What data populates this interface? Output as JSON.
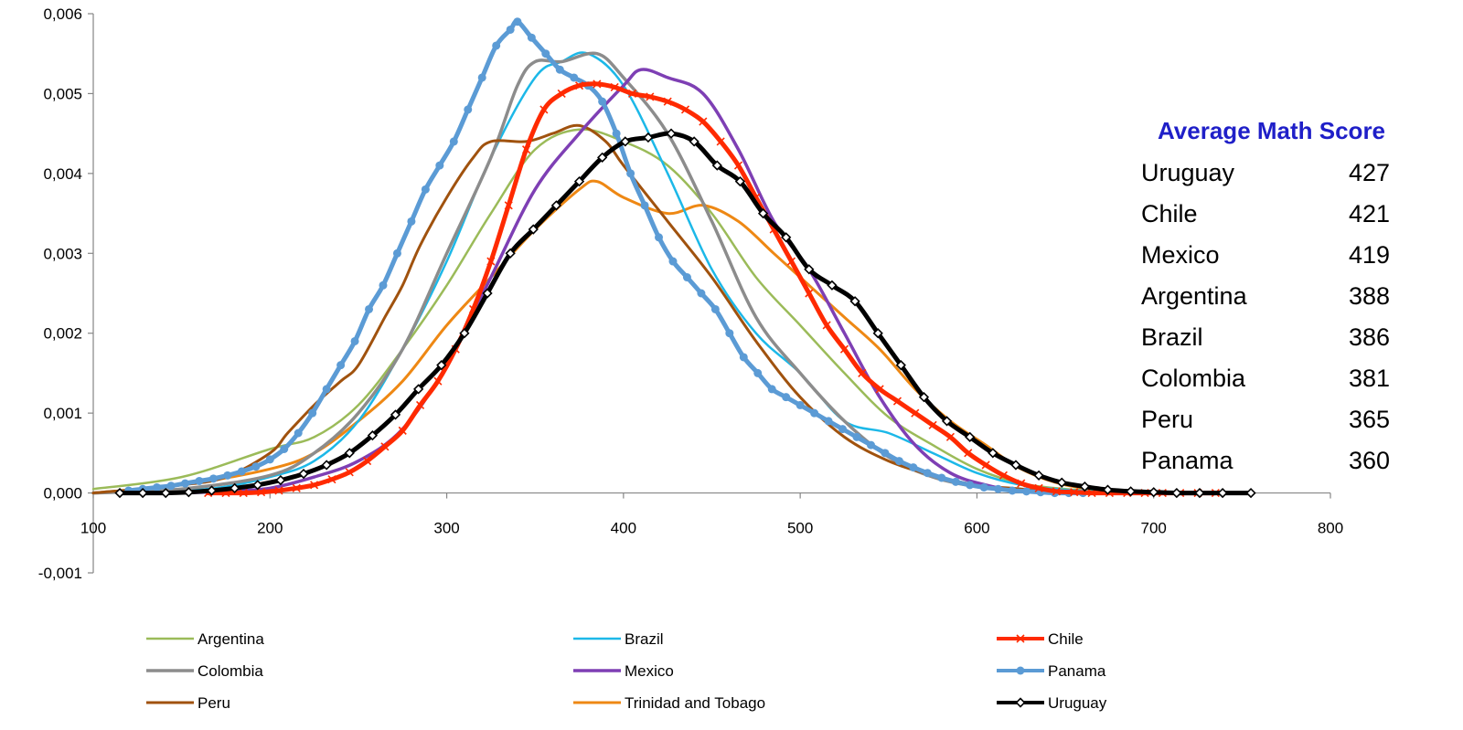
{
  "chart_data": {
    "type": "line",
    "title": "",
    "xlabel": "",
    "ylabel": "",
    "xlim": [
      100,
      800
    ],
    "ylim": [
      -0.001,
      0.006
    ],
    "x_ticks": [
      {
        "value": 100,
        "label": "100"
      },
      {
        "value": 200,
        "label": "200"
      },
      {
        "value": 300,
        "label": "300"
      },
      {
        "value": 400,
        "label": "400"
      },
      {
        "value": 500,
        "label": "500"
      },
      {
        "value": 600,
        "label": "600"
      },
      {
        "value": 700,
        "label": "700"
      },
      {
        "value": 800,
        "label": "800"
      }
    ],
    "y_ticks": [
      {
        "value": -0.001,
        "label": "-0,001"
      },
      {
        "value": 0,
        "label": "0,000"
      },
      {
        "value": 0.001,
        "label": "0,001"
      },
      {
        "value": 0.002,
        "label": "0,002"
      },
      {
        "value": 0.003,
        "label": "0,003"
      },
      {
        "value": 0.004,
        "label": "0,004"
      },
      {
        "value": 0.005,
        "label": "0,005"
      },
      {
        "value": 0.006,
        "label": "0,006"
      }
    ],
    "grid": false,
    "legend_position": "bottom",
    "series": [
      {
        "name": "Argentina",
        "color": "#9bbb59",
        "width": 2.5,
        "marker": "none",
        "x": [
          100,
          150,
          200,
          225,
          250,
          275,
          300,
          325,
          350,
          375,
          400,
          425,
          450,
          475,
          500,
          525,
          550,
          575,
          600,
          625,
          650,
          675,
          700
        ],
        "y": [
          5e-05,
          0.0002,
          0.00055,
          0.0007,
          0.0011,
          0.0018,
          0.0026,
          0.0035,
          0.0043,
          0.00455,
          0.0044,
          0.0041,
          0.0035,
          0.0027,
          0.0021,
          0.0015,
          0.00095,
          0.0006,
          0.0003,
          0.00012,
          5e-05,
          2e-05,
          0
        ]
      },
      {
        "name": "Brazil",
        "color": "#1cb8e8",
        "width": 2.5,
        "marker": "none",
        "x": [
          100,
          150,
          175,
          200,
          225,
          250,
          275,
          300,
          325,
          350,
          365,
          380,
          400,
          425,
          450,
          475,
          500,
          525,
          550,
          575,
          600,
          625,
          650,
          675,
          700
        ],
        "y": [
          0,
          3e-05,
          8e-05,
          0.0002,
          0.0004,
          0.0009,
          0.0018,
          0.0029,
          0.0042,
          0.0052,
          0.0054,
          0.0055,
          0.0051,
          0.004,
          0.0028,
          0.002,
          0.0015,
          0.0009,
          0.00075,
          0.0005,
          0.00025,
          0.0001,
          4e-05,
          1e-05,
          0
        ]
      },
      {
        "name": "Chile",
        "color": "#ff2a00",
        "width": 5,
        "marker": "x",
        "x": [
          165,
          175,
          185,
          195,
          205,
          215,
          225,
          235,
          245,
          255,
          265,
          275,
          285,
          295,
          305,
          315,
          325,
          335,
          345,
          355,
          365,
          375,
          385,
          395,
          405,
          415,
          425,
          435,
          445,
          455,
          465,
          475,
          485,
          495,
          505,
          515,
          525,
          535,
          545,
          555,
          565,
          575,
          585,
          595,
          605,
          615,
          625,
          635,
          645,
          655,
          665,
          675,
          685,
          695,
          705,
          715,
          725,
          735
        ],
        "y": [
          0,
          0,
          0,
          1e-05,
          3e-05,
          6e-05,
          0.0001,
          0.00017,
          0.00026,
          0.0004,
          0.00058,
          0.00078,
          0.0011,
          0.0014,
          0.0018,
          0.0023,
          0.0029,
          0.0036,
          0.0043,
          0.0048,
          0.005,
          0.0051,
          0.00512,
          0.00508,
          0.005,
          0.00496,
          0.0049,
          0.0048,
          0.00465,
          0.0044,
          0.0041,
          0.0037,
          0.0033,
          0.0029,
          0.0025,
          0.0021,
          0.0018,
          0.0015,
          0.0013,
          0.00115,
          0.001,
          0.00085,
          0.0007,
          0.0005,
          0.00035,
          0.00022,
          0.00012,
          6e-05,
          2e-05,
          1e-05,
          0,
          0,
          0,
          0,
          0,
          0,
          0,
          0
        ]
      },
      {
        "name": "Colombia",
        "color": "#8c8c8c",
        "width": 3.5,
        "marker": "none",
        "x": [
          100,
          150,
          200,
          225,
          250,
          275,
          300,
          325,
          340,
          350,
          365,
          385,
          400,
          425,
          450,
          475,
          500,
          525,
          550,
          575,
          600,
          625,
          650
        ],
        "y": [
          0,
          5e-05,
          0.00022,
          0.0005,
          0.001,
          0.0018,
          0.003,
          0.0042,
          0.0051,
          0.0054,
          0.0054,
          0.0055,
          0.0052,
          0.0045,
          0.0034,
          0.0022,
          0.0015,
          0.0009,
          0.00045,
          0.0002,
          8e-05,
          2e-05,
          0
        ]
      },
      {
        "name": "Mexico",
        "color": "#7e3fb4",
        "width": 3.5,
        "marker": "none",
        "x": [
          150,
          175,
          200,
          225,
          250,
          275,
          300,
          325,
          350,
          375,
          400,
          410,
          425,
          445,
          465,
          485,
          505,
          525,
          545,
          565,
          585,
          605,
          625,
          650
        ],
        "y": [
          0,
          2e-05,
          6e-05,
          0.0002,
          0.0004,
          0.0008,
          0.0016,
          0.0027,
          0.0038,
          0.0045,
          0.0051,
          0.0053,
          0.0052,
          0.005,
          0.0043,
          0.0034,
          0.0028,
          0.002,
          0.0012,
          0.0006,
          0.00025,
          0.0001,
          2e-05,
          0
        ]
      },
      {
        "name": "Panama",
        "color": "#5b9bd5",
        "width": 5,
        "marker": "dot",
        "x": [
          120,
          128,
          136,
          144,
          152,
          160,
          168,
          176,
          184,
          192,
          200,
          208,
          216,
          224,
          232,
          240,
          248,
          256,
          264,
          272,
          280,
          288,
          296,
          304,
          312,
          320,
          328,
          336,
          340,
          348,
          356,
          364,
          372,
          380,
          388,
          396,
          404,
          412,
          420,
          428,
          436,
          444,
          452,
          460,
          468,
          476,
          484,
          492,
          500,
          508,
          516,
          524,
          532,
          540,
          548,
          556,
          564,
          572,
          580,
          588,
          596,
          604,
          612,
          620,
          628,
          636,
          644,
          652,
          660
        ],
        "y": [
          3e-05,
          5e-05,
          7e-05,
          9e-05,
          0.00012,
          0.00015,
          0.00018,
          0.00022,
          0.00027,
          0.00033,
          0.00042,
          0.00055,
          0.00075,
          0.001,
          0.0013,
          0.0016,
          0.0019,
          0.0023,
          0.0026,
          0.003,
          0.0034,
          0.0038,
          0.0041,
          0.0044,
          0.0048,
          0.0052,
          0.0056,
          0.0058,
          0.0059,
          0.0057,
          0.0055,
          0.0053,
          0.0052,
          0.0051,
          0.0049,
          0.0045,
          0.004,
          0.0036,
          0.0032,
          0.0029,
          0.0027,
          0.0025,
          0.0023,
          0.002,
          0.0017,
          0.0015,
          0.0013,
          0.0012,
          0.0011,
          0.001,
          0.0009,
          0.0008,
          0.0007,
          0.0006,
          0.0005,
          0.0004,
          0.00032,
          0.00025,
          0.00019,
          0.00014,
          0.0001,
          7e-05,
          5e-05,
          3e-05,
          2e-05,
          1e-05,
          0,
          0,
          0
        ]
      },
      {
        "name": "Peru",
        "color": "#a0520e",
        "width": 3,
        "marker": "none",
        "x": [
          100,
          150,
          175,
          200,
          210,
          225,
          240,
          250,
          265,
          275,
          285,
          300,
          315,
          325,
          345,
          360,
          375,
          390,
          400,
          425,
          450,
          475,
          500,
          525,
          550,
          575,
          600,
          625,
          650
        ],
        "y": [
          0,
          0.0001,
          0.0002,
          0.0005,
          0.00075,
          0.0011,
          0.0014,
          0.0016,
          0.0022,
          0.0026,
          0.0031,
          0.0037,
          0.0042,
          0.0044,
          0.0044,
          0.0045,
          0.0046,
          0.0044,
          0.0041,
          0.0034,
          0.0027,
          0.0019,
          0.0012,
          0.0007,
          0.0004,
          0.00022,
          0.0001,
          5e-05,
          0
        ]
      },
      {
        "name": "Trinidad and Tobago",
        "color": "#ee8814",
        "width": 3,
        "marker": "none",
        "x": [
          100,
          150,
          200,
          225,
          250,
          275,
          300,
          325,
          350,
          375,
          385,
          400,
          425,
          445,
          465,
          485,
          505,
          525,
          545,
          565,
          585,
          605,
          625,
          650,
          675,
          700
        ],
        "y": [
          0,
          0.0001,
          0.0003,
          0.0005,
          0.0009,
          0.0014,
          0.0021,
          0.0027,
          0.0033,
          0.0038,
          0.0039,
          0.0037,
          0.0035,
          0.0036,
          0.0034,
          0.003,
          0.0026,
          0.0022,
          0.0018,
          0.0013,
          0.0009,
          0.0006,
          0.0003,
          0.0001,
          4e-05,
          1e-05
        ]
      },
      {
        "name": "Uruguay",
        "color": "#000000",
        "width": 5,
        "marker": "diamond",
        "x": [
          115,
          128,
          141,
          154,
          167,
          180,
          193,
          206,
          219,
          232,
          245,
          258,
          271,
          284,
          297,
          310,
          323,
          336,
          349,
          362,
          375,
          388,
          401,
          414,
          427,
          440,
          453,
          466,
          479,
          492,
          505,
          518,
          531,
          544,
          557,
          570,
          583,
          596,
          609,
          622,
          635,
          648,
          661,
          674,
          687,
          700,
          713,
          726,
          739,
          755
        ],
        "y": [
          0,
          0,
          0,
          1e-05,
          3e-05,
          6e-05,
          0.0001,
          0.00016,
          0.00024,
          0.00035,
          0.0005,
          0.00072,
          0.00098,
          0.0013,
          0.0016,
          0.002,
          0.0025,
          0.003,
          0.0033,
          0.0036,
          0.0039,
          0.0042,
          0.0044,
          0.00445,
          0.0045,
          0.0044,
          0.0041,
          0.0039,
          0.0035,
          0.0032,
          0.0028,
          0.0026,
          0.0024,
          0.002,
          0.0016,
          0.0012,
          0.0009,
          0.0007,
          0.0005,
          0.00035,
          0.00022,
          0.00013,
          8e-05,
          4e-05,
          2e-05,
          1e-05,
          0,
          0,
          0,
          0
        ]
      }
    ]
  },
  "score_table": {
    "title": "Average Math Score",
    "rows": [
      {
        "country": "Uruguay",
        "score": "427"
      },
      {
        "country": "Chile",
        "score": "421"
      },
      {
        "country": "Mexico",
        "score": "419"
      },
      {
        "country": "Argentina",
        "score": "388"
      },
      {
        "country": "Brazil",
        "score": "386"
      },
      {
        "country": "Colombia",
        "score": "381"
      },
      {
        "country": "Peru",
        "score": "365"
      },
      {
        "country": "Panama",
        "score": "360"
      }
    ]
  }
}
